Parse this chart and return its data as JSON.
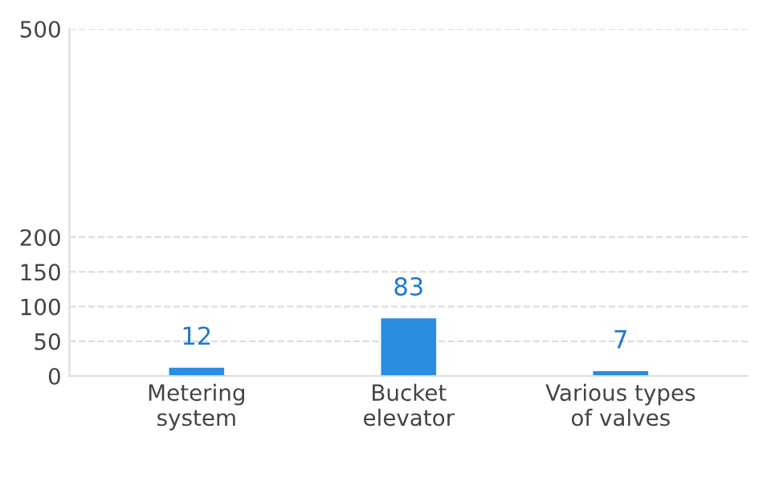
{
  "chart_data": {
    "type": "bar",
    "categories": [
      "Metering\nsystem",
      "Bucket\nelevator",
      "Various types\nof valves"
    ],
    "values": [
      12,
      83,
      7
    ],
    "color": "#2a8de0",
    "data_labels": true,
    "ylim": [
      0,
      500
    ],
    "yticks": [
      0,
      50,
      100,
      150,
      200,
      500
    ],
    "grid": "y"
  }
}
